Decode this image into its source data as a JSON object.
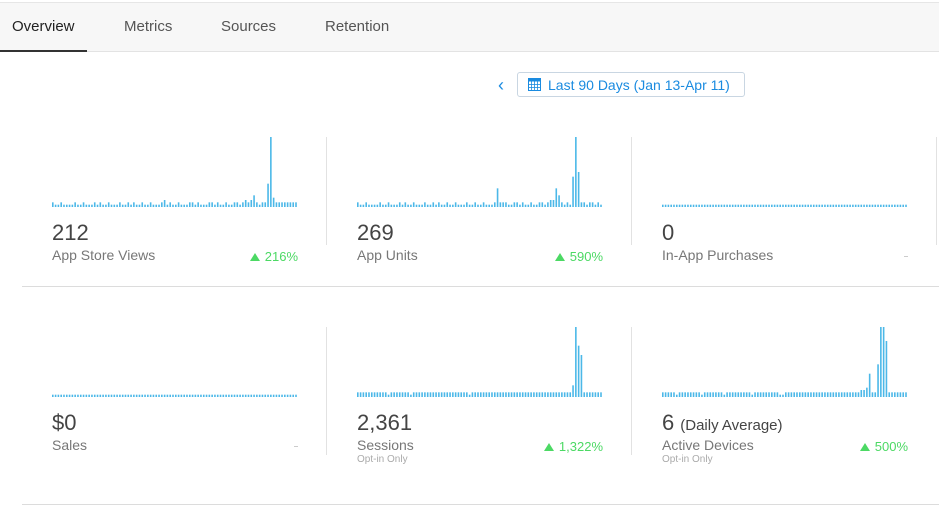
{
  "tabs": [
    {
      "label": "Overview",
      "active": true
    },
    {
      "label": "Metrics",
      "active": false
    },
    {
      "label": "Sources",
      "active": false
    },
    {
      "label": "Retention",
      "active": false
    }
  ],
  "date_range": {
    "prev_icon": "chevron-left-icon",
    "calendar_icon": "calendar-icon",
    "label": "Last 90 Days (Jan 13-Apr 11)"
  },
  "colors": {
    "accent": "#1a8be0",
    "spark": "#4cb8e8",
    "up": "#4cd964"
  },
  "metrics": [
    {
      "value": "212",
      "suffix": "",
      "label": "App Store Views",
      "sublabel": "",
      "change": "216%",
      "trend": "up",
      "series": [
        2,
        1,
        1,
        2,
        1,
        1,
        1,
        1,
        2,
        1,
        1,
        2,
        1,
        1,
        1,
        2,
        1,
        2,
        1,
        1,
        2,
        1,
        1,
        1,
        2,
        1,
        1,
        2,
        1,
        2,
        1,
        1,
        2,
        1,
        1,
        2,
        1,
        1,
        1,
        2,
        3,
        1,
        2,
        1,
        1,
        2,
        1,
        1,
        1,
        2,
        2,
        1,
        2,
        1,
        1,
        1,
        2,
        2,
        1,
        2,
        1,
        1,
        2,
        1,
        1,
        2,
        2,
        1,
        2,
        3,
        2,
        3,
        5,
        2,
        1,
        2,
        2,
        10,
        30,
        4,
        2,
        2,
        2,
        2,
        2,
        2,
        2,
        2
      ]
    },
    {
      "value": "269",
      "suffix": "",
      "label": "App Units",
      "sublabel": "",
      "change": "590%",
      "trend": "up",
      "series": [
        2,
        1,
        1,
        2,
        1,
        1,
        1,
        1,
        2,
        1,
        1,
        2,
        1,
        1,
        1,
        2,
        1,
        2,
        1,
        1,
        2,
        1,
        1,
        1,
        2,
        1,
        1,
        2,
        1,
        2,
        1,
        1,
        2,
        1,
        1,
        2,
        1,
        1,
        1,
        2,
        1,
        1,
        2,
        1,
        1,
        2,
        1,
        1,
        1,
        2,
        8,
        2,
        2,
        2,
        1,
        1,
        2,
        2,
        1,
        2,
        1,
        1,
        2,
        1,
        1,
        2,
        2,
        1,
        2,
        3,
        3,
        8,
        5,
        2,
        1,
        2,
        1,
        13,
        30,
        15,
        2,
        2,
        1,
        2,
        2,
        1,
        2,
        1
      ]
    },
    {
      "value": "0",
      "suffix": "",
      "label": "In-App Purchases",
      "sublabel": "",
      "change": "",
      "trend": "none",
      "series": [
        1,
        1,
        1,
        1,
        1,
        1,
        1,
        1,
        1,
        1,
        1,
        1,
        1,
        1,
        1,
        1,
        1,
        1,
        1,
        1,
        1,
        1,
        1,
        1,
        1,
        1,
        1,
        1,
        1,
        1,
        1,
        1,
        1,
        1,
        1,
        1,
        1,
        1,
        1,
        1,
        1,
        1,
        1,
        1,
        1,
        1,
        1,
        1,
        1,
        1,
        1,
        1,
        1,
        1,
        1,
        1,
        1,
        1,
        1,
        1,
        1,
        1,
        1,
        1,
        1,
        1,
        1,
        1,
        1,
        1,
        1,
        1,
        1,
        1,
        1,
        1,
        1,
        1,
        1,
        1,
        1,
        1,
        1,
        1,
        1,
        1,
        1,
        1
      ]
    },
    {
      "value": "$0",
      "suffix": "",
      "label": "Sales",
      "sublabel": "",
      "change": "",
      "trend": "none",
      "series": [
        1,
        1,
        1,
        1,
        1,
        1,
        1,
        1,
        1,
        1,
        1,
        1,
        1,
        1,
        1,
        1,
        1,
        1,
        1,
        1,
        1,
        1,
        1,
        1,
        1,
        1,
        1,
        1,
        1,
        1,
        1,
        1,
        1,
        1,
        1,
        1,
        1,
        1,
        1,
        1,
        1,
        1,
        1,
        1,
        1,
        1,
        1,
        1,
        1,
        1,
        1,
        1,
        1,
        1,
        1,
        1,
        1,
        1,
        1,
        1,
        1,
        1,
        1,
        1,
        1,
        1,
        1,
        1,
        1,
        1,
        1,
        1,
        1,
        1,
        1,
        1,
        1,
        1,
        1,
        1,
        1,
        1,
        1,
        1,
        1,
        1,
        1,
        1
      ]
    },
    {
      "value": "2,361",
      "suffix": "",
      "label": "Sessions",
      "sublabel": "Opt-in Only",
      "change": "1,322%",
      "trend": "up",
      "series": [
        2,
        2,
        2,
        2,
        2,
        2,
        2,
        2,
        2,
        2,
        2,
        1,
        2,
        2,
        2,
        2,
        2,
        2,
        2,
        1,
        2,
        2,
        2,
        2,
        2,
        2,
        2,
        2,
        2,
        2,
        2,
        2,
        2,
        2,
        2,
        2,
        2,
        2,
        2,
        2,
        1,
        2,
        2,
        2,
        2,
        2,
        2,
        2,
        2,
        2,
        2,
        2,
        2,
        2,
        2,
        2,
        2,
        2,
        2,
        2,
        2,
        2,
        2,
        2,
        2,
        2,
        2,
        2,
        2,
        2,
        2,
        2,
        2,
        2,
        2,
        2,
        2,
        5,
        30,
        22,
        18,
        2,
        2,
        2,
        2,
        2,
        2,
        2
      ]
    },
    {
      "value": "6",
      "suffix": "(Daily Average)",
      "label": "Active Devices",
      "sublabel": "Opt-in Only",
      "change": "500%",
      "trend": "up",
      "series": [
        2,
        2,
        2,
        2,
        2,
        1,
        2,
        2,
        2,
        2,
        2,
        2,
        2,
        2,
        1,
        2,
        2,
        2,
        2,
        2,
        2,
        2,
        1,
        2,
        2,
        2,
        2,
        2,
        2,
        2,
        2,
        2,
        1,
        2,
        2,
        2,
        2,
        2,
        2,
        2,
        2,
        2,
        1,
        1,
        2,
        2,
        2,
        2,
        2,
        2,
        2,
        2,
        2,
        2,
        2,
        2,
        2,
        2,
        2,
        2,
        2,
        2,
        2,
        2,
        2,
        2,
        2,
        2,
        2,
        2,
        2,
        3,
        3,
        4,
        10,
        2,
        2,
        14,
        30,
        30,
        24,
        2,
        2,
        2,
        2,
        2,
        2,
        2
      ]
    }
  ]
}
